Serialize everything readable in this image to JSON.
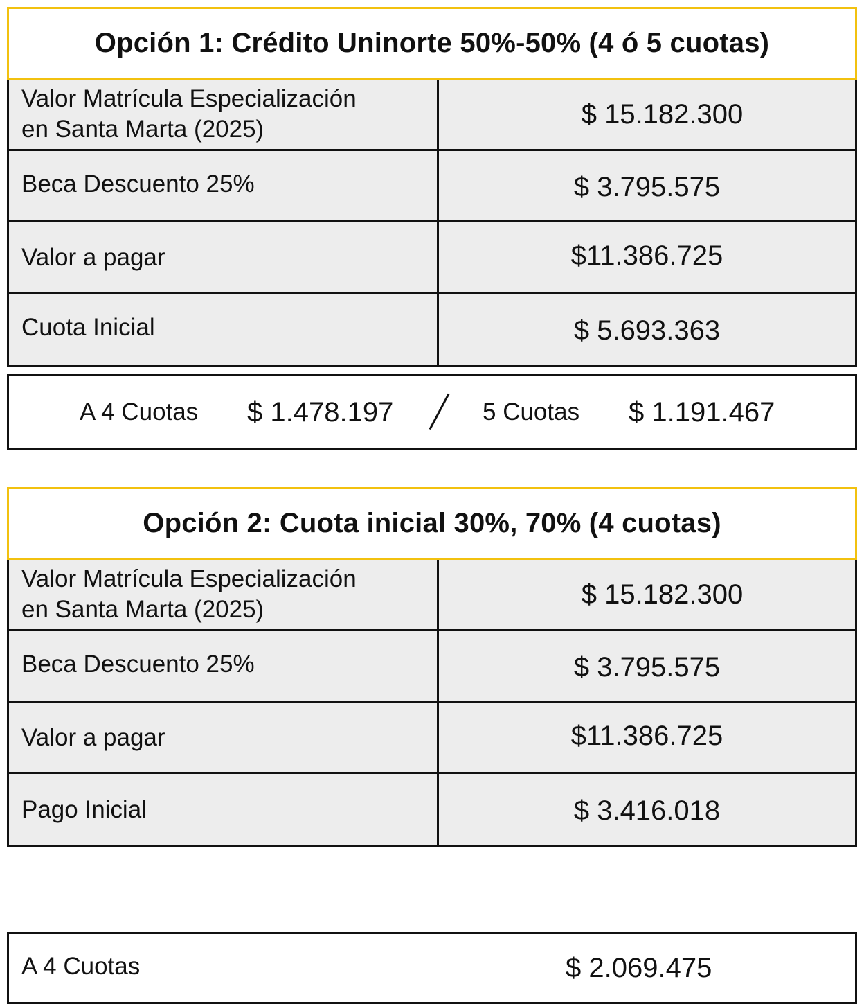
{
  "option1": {
    "title": "Opción 1: Crédito Uninorte 50%-50% (4 ó 5 cuotas)",
    "rows": [
      {
        "label_line1": "Valor Matrícula Especialización",
        "label_line2": "en Santa Marta (2025)",
        "value": "$ 15.182.300"
      },
      {
        "label": "Beca Descuento 25%",
        "value": "$ 3.795.575"
      },
      {
        "label": "Valor a pagar",
        "value": "$11.386.725"
      },
      {
        "label": "Cuota Inicial",
        "value": "$ 5.693.363"
      }
    ],
    "installments": {
      "a_label": "A 4 Cuotas",
      "a_value": "$ 1.478.197",
      "separator": "/",
      "b_label": "5 Cuotas",
      "b_value": "$ 1.191.467"
    }
  },
  "option2": {
    "title": "Opción 2: Cuota inicial 30%, 70% (4 cuotas)",
    "rows": [
      {
        "label_line1": "Valor Matrícula Especialización",
        "label_line2": "en Santa Marta (2025)",
        "value": "$ 15.182.300"
      },
      {
        "label": "Beca Descuento 25%",
        "value": "$ 3.795.575"
      },
      {
        "label": "Valor a pagar",
        "value": "$11.386.725"
      },
      {
        "label": "Pago Inicial",
        "value": "$ 3.416.018"
      }
    ],
    "installments": {
      "a_label": "A 4 Cuotas",
      "a_value": "$ 2.069.475"
    }
  },
  "colors": {
    "title_border": "#f2c10f",
    "row_background": "#ededed",
    "line": "#111111"
  }
}
